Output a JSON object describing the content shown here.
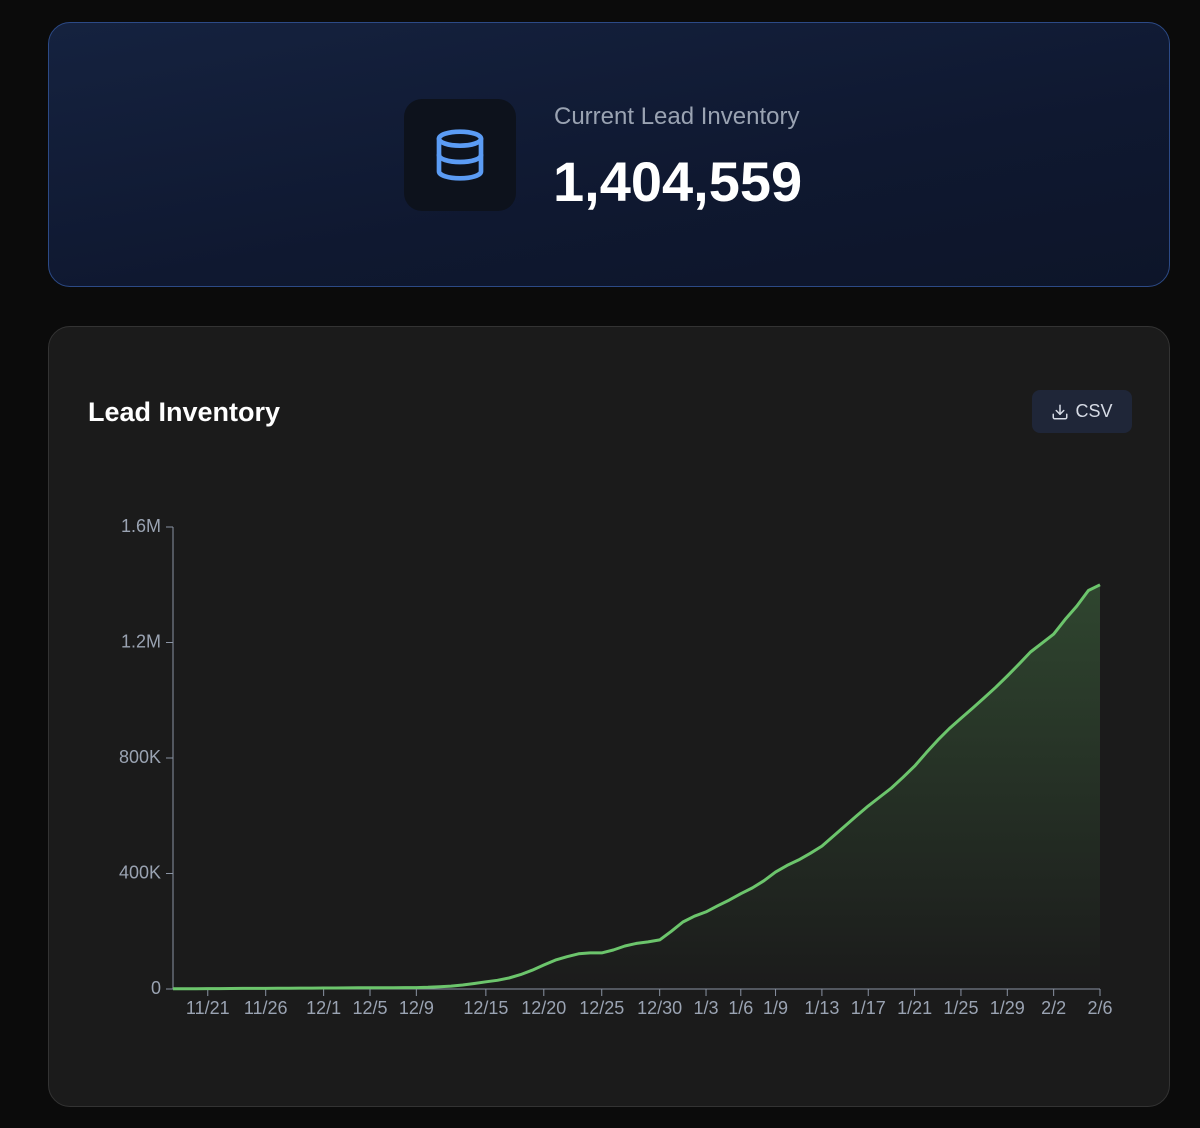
{
  "stat_card": {
    "label": "Current Lead Inventory",
    "value": "1,404,559"
  },
  "chart_data": {
    "type": "line",
    "title": "Lead Inventory",
    "button": "CSV",
    "color": "#6cc56c",
    "categories": [
      null,
      null,
      null,
      "11/21",
      null,
      null,
      null,
      null,
      "11/26",
      null,
      null,
      null,
      null,
      "12/1",
      null,
      null,
      null,
      "12/5",
      null,
      null,
      null,
      "12/9",
      null,
      null,
      null,
      null,
      null,
      "12/15",
      null,
      null,
      null,
      null,
      "12/20",
      null,
      null,
      null,
      null,
      "12/25",
      null,
      null,
      null,
      null,
      "12/30",
      null,
      null,
      null,
      "1/3",
      null,
      null,
      "1/6",
      null,
      null,
      "1/9",
      null,
      null,
      null,
      "1/13",
      null,
      null,
      null,
      "1/17",
      null,
      null,
      null,
      "1/21",
      null,
      null,
      null,
      "1/25",
      null,
      null,
      null,
      "1/29",
      null,
      null,
      null,
      "2/2",
      null,
      null,
      null,
      "2/6"
    ],
    "values": [
      1000,
      1000,
      1200,
      1500,
      1500,
      1800,
      2000,
      2000,
      2200,
      2500,
      2800,
      3000,
      3200,
      3400,
      3600,
      3800,
      4000,
      4200,
      4400,
      4600,
      4800,
      5000,
      6000,
      8000,
      10000,
      14000,
      19000,
      25000,
      30000,
      38000,
      50000,
      65000,
      83000,
      100000,
      112000,
      122000,
      125000,
      125000,
      135000,
      149000,
      158000,
      163000,
      170000,
      200000,
      232000,
      252000,
      267000,
      288000,
      308000,
      330000,
      350000,
      375000,
      405000,
      428000,
      447000,
      470000,
      495000,
      530000,
      565000,
      600000,
      634000,
      665000,
      696000,
      733000,
      772000,
      818000,
      862000,
      902000,
      938000,
      972000,
      1008000,
      1045000,
      1084000,
      1125000,
      1167000,
      1198000,
      1229000,
      1280000,
      1326000,
      1380000,
      1400000
    ],
    "ylim": [
      0,
      1600000
    ],
    "yticks": [
      0,
      {
        "value": 400000,
        "label": "400K"
      },
      {
        "value": 800000,
        "label": "800K"
      },
      {
        "value": 1200000,
        "label": "1.2M"
      },
      {
        "value": 1600000,
        "label": "1.6M"
      }
    ]
  }
}
